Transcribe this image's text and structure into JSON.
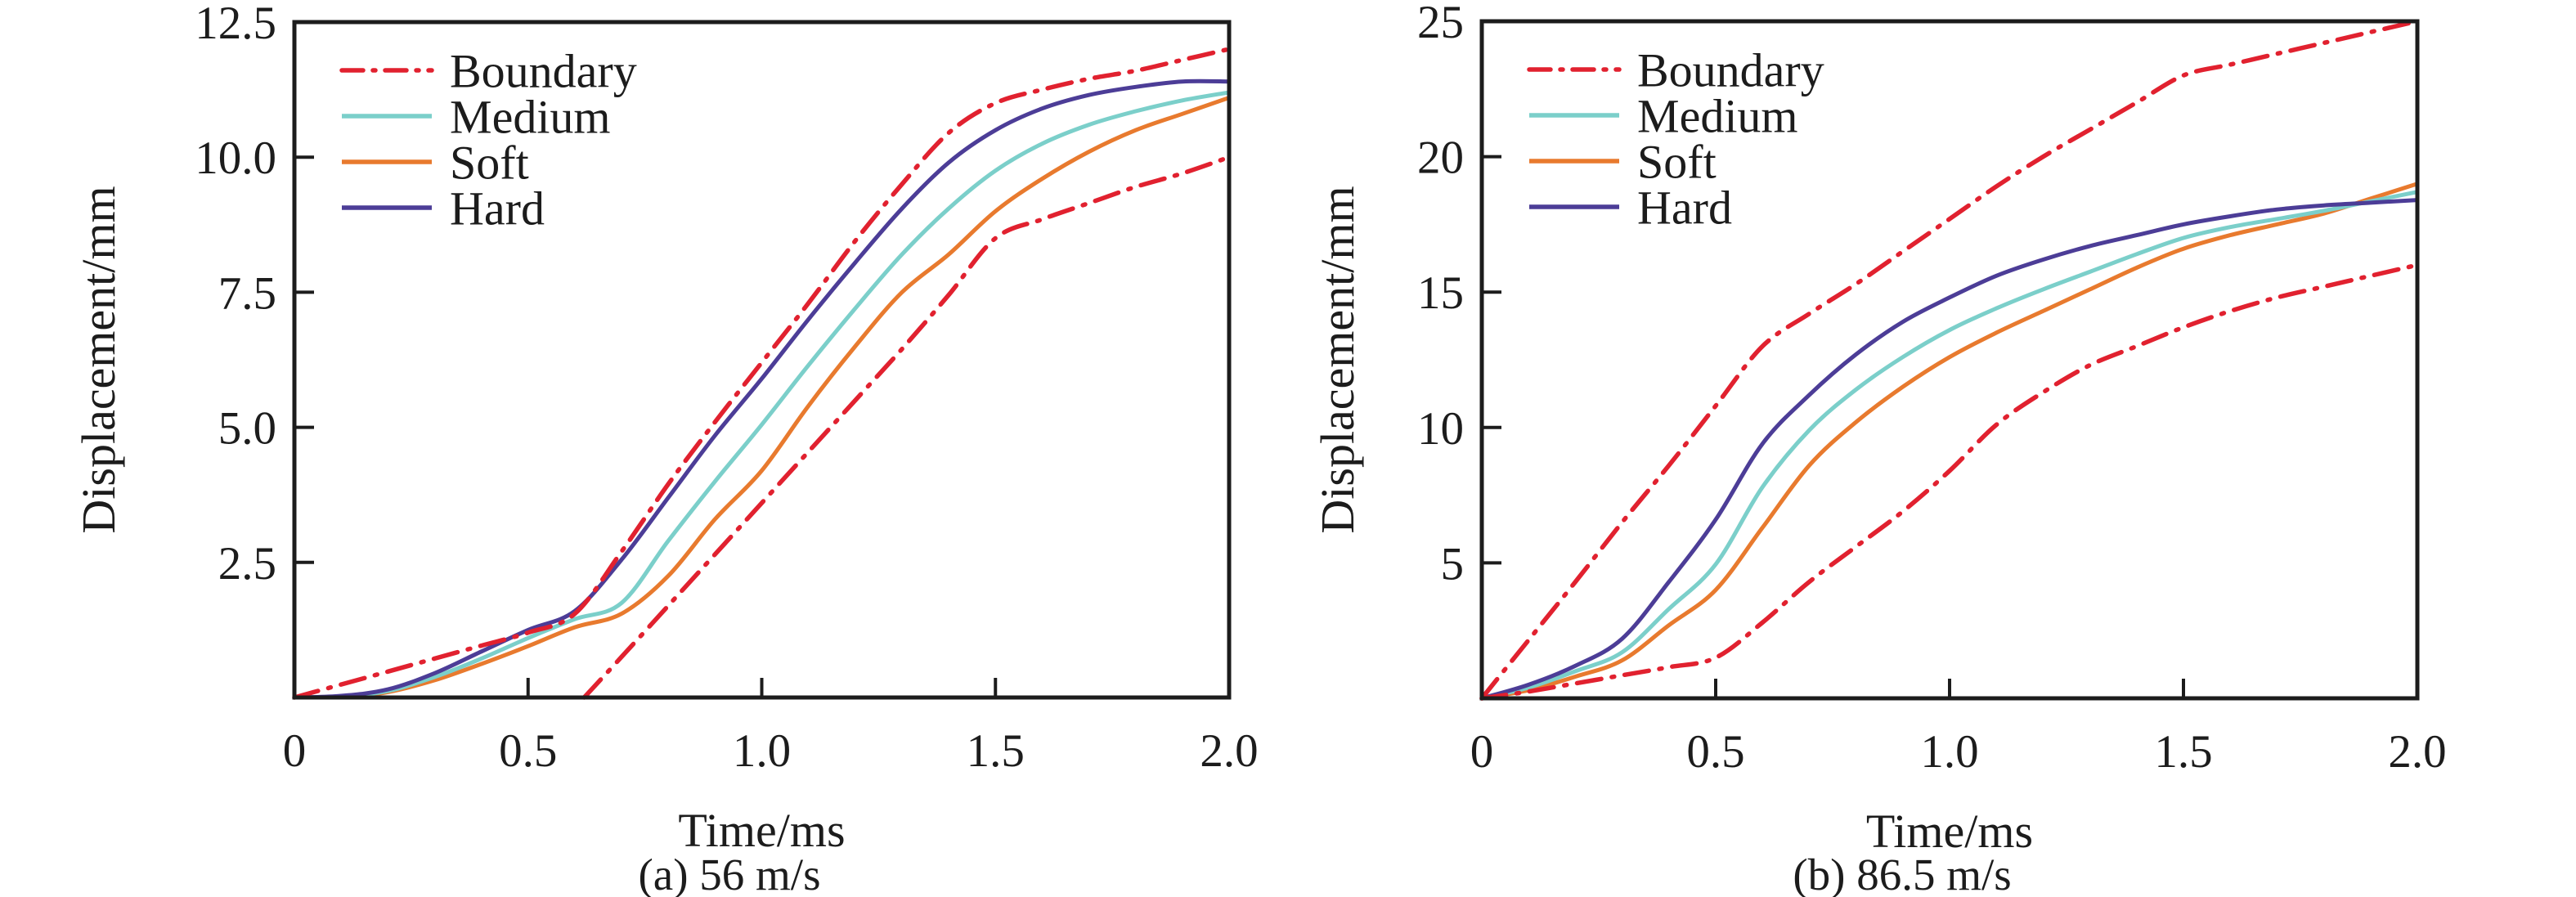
{
  "figure": {
    "background": "#ffffff",
    "frame_color": "#1c1c1c"
  },
  "chart_data": [
    {
      "id": "a",
      "type": "line",
      "caption": "(a) 56 m/s",
      "xlabel": "Time/ms",
      "ylabel": "Displacement/mm",
      "xlim": [
        0,
        2.0
      ],
      "ylim": [
        0,
        12.5
      ],
      "grid": false,
      "legend_position": "top-left",
      "xticks": {
        "values": [
          0,
          0.5,
          1.0,
          1.5,
          2.0
        ],
        "labels": [
          "0",
          "0.5",
          "1.0",
          "1.5",
          "2.0"
        ]
      },
      "yticks": {
        "values": [
          2.5,
          5.0,
          7.5,
          10.0,
          12.5
        ],
        "labels": [
          "2.5",
          "5.0",
          "7.5",
          "10.0",
          "12.5"
        ]
      },
      "legend": [
        {
          "label": "Boundary",
          "color": "#e1212f",
          "style": "dash-dot"
        },
        {
          "label": "Medium",
          "color": "#7bcfca",
          "style": "solid"
        },
        {
          "label": "Soft",
          "color": "#e87a2e",
          "style": "solid"
        },
        {
          "label": "Hard",
          "color": "#4c3d97",
          "style": "solid"
        }
      ],
      "series": [
        {
          "name": "soft",
          "color": "#e87a2e",
          "style": "solid",
          "x": [
            0,
            0.1,
            0.2,
            0.3,
            0.4,
            0.5,
            0.6,
            0.7,
            0.8,
            0.9,
            1.0,
            1.1,
            1.2,
            1.3,
            1.4,
            1.5,
            1.6,
            1.7,
            1.8,
            1.9,
            2.0
          ],
          "y": [
            0,
            0.01,
            0.1,
            0.32,
            0.62,
            0.95,
            1.3,
            1.55,
            2.25,
            3.3,
            4.2,
            5.4,
            6.5,
            7.5,
            8.2,
            9.0,
            9.6,
            10.1,
            10.5,
            10.8,
            11.1
          ]
        },
        {
          "name": "medium",
          "color": "#7bcfca",
          "style": "solid",
          "x": [
            0,
            0.1,
            0.2,
            0.3,
            0.4,
            0.5,
            0.6,
            0.7,
            0.8,
            0.9,
            1.0,
            1.1,
            1.2,
            1.3,
            1.4,
            1.5,
            1.6,
            1.7,
            1.8,
            1.9,
            2.0
          ],
          "y": [
            0,
            0.02,
            0.12,
            0.38,
            0.72,
            1.1,
            1.45,
            1.75,
            2.9,
            4.0,
            5.05,
            6.15,
            7.2,
            8.2,
            9.05,
            9.75,
            10.25,
            10.6,
            10.85,
            11.05,
            11.2
          ]
        },
        {
          "name": "hard",
          "color": "#4c3d97",
          "style": "solid",
          "x": [
            0,
            0.1,
            0.2,
            0.3,
            0.4,
            0.5,
            0.6,
            0.7,
            0.8,
            0.9,
            1.0,
            1.1,
            1.2,
            1.3,
            1.4,
            1.5,
            1.6,
            1.7,
            1.8,
            1.9,
            2.0
          ],
          "y": [
            0,
            0.03,
            0.15,
            0.45,
            0.85,
            1.25,
            1.6,
            2.55,
            3.7,
            4.85,
            5.9,
            7.0,
            8.05,
            9.05,
            9.9,
            10.5,
            10.9,
            11.15,
            11.3,
            11.4,
            11.4
          ]
        },
        {
          "name": "boundary-upper",
          "color": "#e1212f",
          "style": "dash-dot",
          "x": [
            0,
            0.1,
            0.2,
            0.3,
            0.4,
            0.5,
            0.6,
            0.7,
            0.8,
            0.9,
            1.0,
            1.1,
            1.2,
            1.3,
            1.4,
            1.5,
            1.6,
            1.7,
            1.8,
            1.9,
            2.0
          ],
          "y": [
            0,
            0.24,
            0.48,
            0.72,
            0.96,
            1.2,
            1.55,
            2.7,
            3.95,
            5.1,
            6.2,
            7.3,
            8.45,
            9.5,
            10.45,
            11.0,
            11.25,
            11.45,
            11.6,
            11.8,
            12.0
          ]
        },
        {
          "name": "boundary-lower",
          "color": "#e1212f",
          "style": "dash-dot",
          "x": [
            0.62,
            0.7,
            0.8,
            0.9,
            1.0,
            1.1,
            1.2,
            1.3,
            1.4,
            1.5,
            1.6,
            1.7,
            1.8,
            1.9,
            2.0
          ],
          "y": [
            0,
            0.75,
            1.7,
            2.65,
            3.6,
            4.55,
            5.5,
            6.45,
            7.45,
            8.5,
            8.85,
            9.15,
            9.45,
            9.7,
            10.0
          ]
        }
      ]
    },
    {
      "id": "b",
      "type": "line",
      "caption": "(b) 86.5 m/s",
      "xlabel": "Time/ms",
      "ylabel": "Displacement/mm",
      "xlim": [
        0,
        2.0
      ],
      "ylim": [
        0,
        25
      ],
      "grid": false,
      "legend_position": "top-left",
      "xticks": {
        "values": [
          0,
          0.5,
          1.0,
          1.5,
          2.0
        ],
        "labels": [
          "0",
          "0.5",
          "1.0",
          "1.5",
          "2.0"
        ]
      },
      "yticks": {
        "values": [
          5,
          10,
          15,
          20,
          25
        ],
        "labels": [
          "5",
          "10",
          "15",
          "20",
          "25"
        ]
      },
      "legend": [
        {
          "label": "Boundary",
          "color": "#e1212f",
          "style": "dash-dot"
        },
        {
          "label": "Medium",
          "color": "#7bcfca",
          "style": "solid"
        },
        {
          "label": "Soft",
          "color": "#e87a2e",
          "style": "solid"
        },
        {
          "label": "Hard",
          "color": "#4c3d97",
          "style": "solid"
        }
      ],
      "series": [
        {
          "name": "soft",
          "color": "#e87a2e",
          "style": "solid",
          "x": [
            0,
            0.1,
            0.2,
            0.3,
            0.4,
            0.5,
            0.6,
            0.7,
            0.8,
            0.9,
            1.0,
            1.1,
            1.2,
            1.3,
            1.4,
            1.5,
            1.6,
            1.7,
            1.8,
            1.9,
            2.0
          ],
          "y": [
            0,
            0.3,
            0.8,
            1.4,
            2.7,
            4.0,
            6.3,
            8.6,
            10.2,
            11.5,
            12.6,
            13.5,
            14.3,
            15.1,
            15.9,
            16.6,
            17.1,
            17.5,
            17.9,
            18.45,
            19.0
          ]
        },
        {
          "name": "medium",
          "color": "#7bcfca",
          "style": "solid",
          "x": [
            0,
            0.1,
            0.2,
            0.3,
            0.4,
            0.5,
            0.6,
            0.7,
            0.8,
            0.9,
            1.0,
            1.1,
            1.2,
            1.3,
            1.4,
            1.5,
            1.6,
            1.7,
            1.8,
            1.9,
            2.0
          ],
          "y": [
            0,
            0.4,
            1.0,
            1.7,
            3.3,
            4.95,
            7.8,
            9.9,
            11.4,
            12.6,
            13.6,
            14.4,
            15.1,
            15.75,
            16.4,
            17.0,
            17.4,
            17.7,
            18.0,
            18.35,
            18.7
          ]
        },
        {
          "name": "hard",
          "color": "#4c3d97",
          "style": "solid",
          "x": [
            0,
            0.1,
            0.2,
            0.3,
            0.4,
            0.5,
            0.6,
            0.7,
            0.8,
            0.9,
            1.0,
            1.1,
            1.2,
            1.3,
            1.4,
            1.5,
            1.6,
            1.7,
            1.8,
            1.9,
            2.0
          ],
          "y": [
            0,
            0.5,
            1.2,
            2.2,
            4.3,
            6.6,
            9.4,
            11.2,
            12.7,
            13.9,
            14.8,
            15.6,
            16.2,
            16.7,
            17.1,
            17.5,
            17.8,
            18.05,
            18.2,
            18.3,
            18.4
          ]
        },
        {
          "name": "boundary-upper",
          "color": "#e1212f",
          "style": "dash-dot",
          "x": [
            0,
            0.1,
            0.2,
            0.3,
            0.4,
            0.5,
            0.6,
            0.7,
            0.8,
            0.9,
            1.0,
            1.1,
            1.2,
            1.3,
            1.4,
            1.5,
            1.6,
            1.7,
            1.8,
            1.9,
            2.0
          ],
          "y": [
            0,
            2.15,
            4.3,
            6.5,
            8.6,
            10.8,
            13.0,
            14.2,
            15.3,
            16.5,
            17.7,
            18.9,
            20.0,
            21.0,
            22.0,
            23.0,
            23.4,
            23.8,
            24.2,
            24.6,
            25.0
          ]
        },
        {
          "name": "boundary-lower",
          "color": "#e1212f",
          "style": "dash-dot",
          "x": [
            0,
            0.1,
            0.2,
            0.3,
            0.4,
            0.5,
            0.6,
            0.7,
            0.8,
            0.9,
            1.0,
            1.1,
            1.2,
            1.3,
            1.4,
            1.5,
            1.6,
            1.7,
            1.8,
            1.9,
            2.0
          ],
          "y": [
            0,
            0.25,
            0.55,
            0.85,
            1.15,
            1.5,
            2.8,
            4.3,
            5.6,
            6.9,
            8.4,
            10.1,
            11.3,
            12.3,
            13.0,
            13.7,
            14.3,
            14.8,
            15.2,
            15.6,
            16.0
          ]
        }
      ]
    }
  ]
}
